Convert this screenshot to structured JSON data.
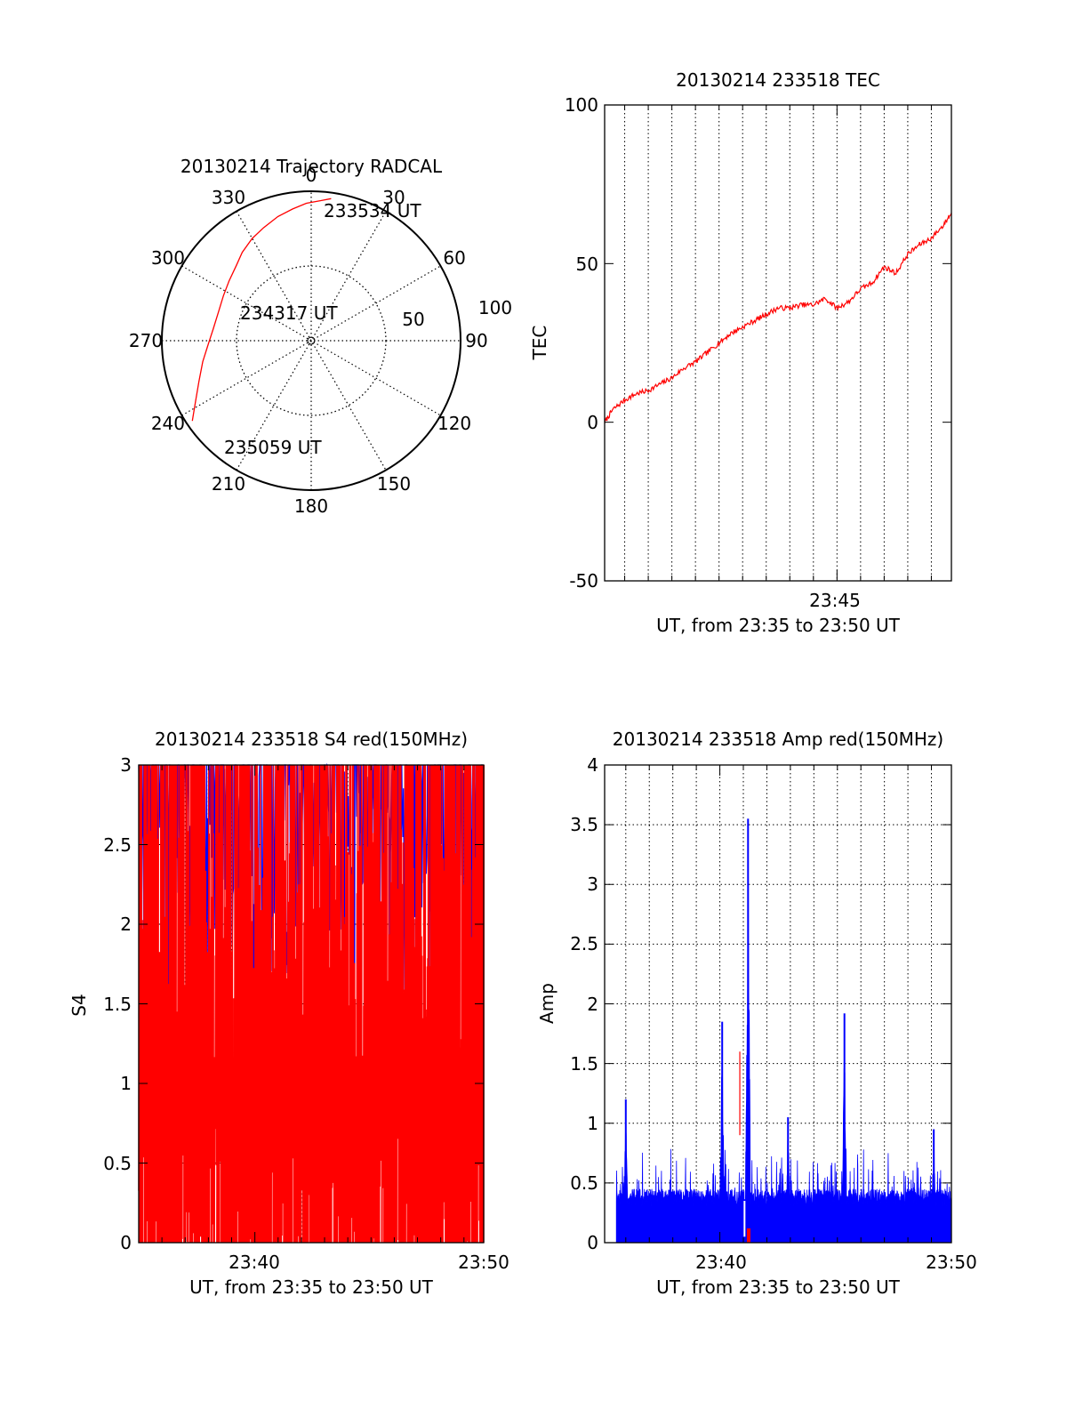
{
  "colors": {
    "trace_red": "#ff0000",
    "trace_blue": "#0000ff",
    "axis": "#000000"
  },
  "chart_data": [
    {
      "id": "trajectory",
      "type": "polar",
      "title": "20130214 Trajectory RADCAL",
      "angle_labels": [
        "0",
        "30",
        "60",
        "90",
        "120",
        "150",
        "180",
        "210",
        "240",
        "270",
        "300",
        "330"
      ],
      "radial_labels": [
        "50",
        "100"
      ],
      "trajectory": {
        "az": [
          8,
          4,
          358,
          352,
          345,
          337,
          330,
          322,
          315,
          306,
          297,
          287,
          277,
          268,
          259,
          250,
          241,
          236
        ],
        "r": [
          96,
          94,
          92,
          89,
          86,
          82,
          79,
          75,
          71,
          68,
          66,
          65,
          66,
          69,
          74,
          80,
          89,
          96
        ]
      },
      "annotations": [
        {
          "text": "233534 UT",
          "az": 18,
          "r": 104
        },
        {
          "text": "234317 UT",
          "az": 282,
          "r": 45
        },
        {
          "text": "235059 UT",
          "az": 228,
          "r": 88
        }
      ]
    },
    {
      "id": "tec",
      "type": "line",
      "title": "20130214 233518 TEC",
      "ylabel": "TEC",
      "xlabel": "UT, from 23:35 to 23:50 UT",
      "xlim": [
        35.15,
        49.85
      ],
      "ylim": [
        -50,
        100
      ],
      "yticks": [
        "100",
        "50",
        "0",
        "-50"
      ],
      "xticks": [
        {
          "value": 45,
          "label": "23:45"
        }
      ],
      "grid": true,
      "series": [
        {
          "x": [
            35.15,
            35.5,
            36.0,
            36.5,
            37.0,
            37.5,
            38.0,
            38.5,
            39.0,
            39.5,
            40.0,
            40.5,
            41.0,
            41.5,
            42.0,
            42.5,
            43.0,
            43.5,
            44.0,
            44.5,
            45.0,
            45.5,
            46.0,
            46.5,
            47.0,
            47.5,
            48.0,
            48.5,
            49.0,
            49.5,
            49.85
          ],
          "y": [
            0,
            4,
            7,
            9,
            10,
            12,
            14,
            17,
            19,
            22,
            25,
            28,
            30,
            32,
            34,
            36,
            36,
            37,
            37,
            39,
            36,
            38,
            42,
            44,
            49,
            47,
            53,
            56,
            58,
            62,
            66
          ]
        }
      ]
    },
    {
      "id": "s4",
      "type": "line",
      "title": "20130214 233518 S4 red(150MHz)",
      "ylabel": "S4",
      "xlabel": "UT, from 23:35 to 23:50 UT",
      "xlim": [
        35.0,
        49.85
      ],
      "ylim": [
        0,
        3
      ],
      "yticks": [
        "3",
        "2.5",
        "2",
        "1.5",
        "1",
        "0.5",
        "0"
      ],
      "xticks": [
        {
          "value": 40,
          "label": "23:40"
        },
        {
          "value": 50,
          "label": "23:50"
        }
      ],
      "grid": true,
      "series_colors": [
        "blue",
        "red"
      ]
    },
    {
      "id": "amp",
      "type": "line",
      "title": "20130214 233518 Amp red(150MHz)",
      "ylabel": "Amp",
      "xlabel": "UT, from 23:35 to 23:50 UT",
      "xlim": [
        35.1,
        49.85
      ],
      "ylim": [
        0,
        4
      ],
      "yticks": [
        "4",
        "3.5",
        "3",
        "2.5",
        "2",
        "1.5",
        "1",
        "0.5",
        "0"
      ],
      "xticks": [
        {
          "value": 40,
          "label": "23:40"
        },
        {
          "value": 50,
          "label": "23:50"
        }
      ],
      "grid": true,
      "series_colors": [
        "blue",
        "red"
      ],
      "peaks": [
        {
          "x": 40.1,
          "y": 1.85
        },
        {
          "x": 41.2,
          "y": 3.55
        },
        {
          "x": 42.9,
          "y": 1.05
        },
        {
          "x": 45.3,
          "y": 1.92
        },
        {
          "x": 36.0,
          "y": 1.2
        },
        {
          "x": 49.1,
          "y": 0.95
        }
      ]
    }
  ]
}
